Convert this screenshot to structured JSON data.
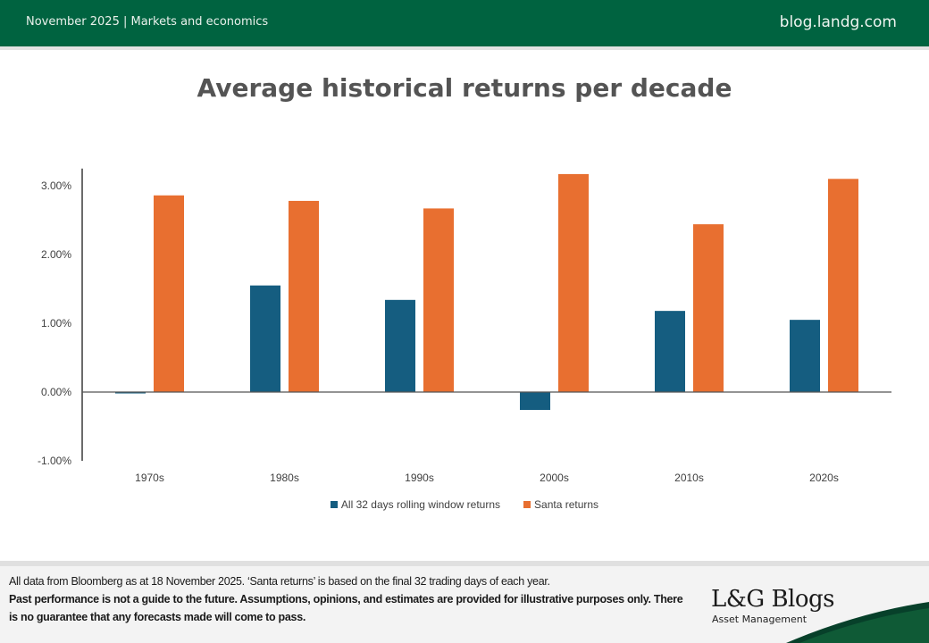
{
  "header": {
    "left_text": "November 2025 | Markets and economics",
    "right_text": "blog.landg.com"
  },
  "colors": {
    "brand_green": "#006340",
    "series_blue": "#155d80",
    "series_orange": "#e86f30"
  },
  "chart_data": {
    "type": "bar",
    "title": "Average historical returns per decade",
    "categories": [
      "1970s",
      "1980s",
      "1990s",
      "2000s",
      "2010s",
      "2020s"
    ],
    "series": [
      {
        "name": "All 32 days rolling window returns",
        "color": "#155d80",
        "values": [
          -0.02,
          1.55,
          1.34,
          -0.26,
          1.18,
          1.05
        ]
      },
      {
        "name": "Santa returns",
        "color": "#e86f30",
        "values": [
          2.86,
          2.78,
          2.67,
          3.17,
          2.44,
          3.1
        ]
      }
    ],
    "yticks": [
      "-1.00%",
      "0.00%",
      "1.00%",
      "2.00%",
      "3.00%"
    ],
    "ytick_values": [
      -1,
      0,
      1,
      2,
      3
    ],
    "ylim": [
      -1,
      3.25
    ],
    "xlabel": "",
    "ylabel": "",
    "grid": false,
    "legend_position": "bottom"
  },
  "footer": {
    "note": "All data from Bloomberg as at 18 November 2025. ‘Santa returns’ is based on the final 32 trading days of each year.",
    "disclaimer": "Past performance is not a guide to the future. Assumptions, opinions, and estimates are provided for illustrative purposes only. There is no guarantee that any forecasts made will come to pass.",
    "logo_title": "L&G Blogs",
    "logo_subtitle": "Asset Management"
  }
}
